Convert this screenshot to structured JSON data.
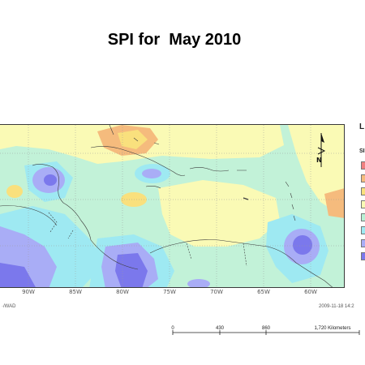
{
  "title": "SPI for  May 2010",
  "legend": {
    "title": "L",
    "subtitle": "SI",
    "classes": [
      {
        "color": "#f08080"
      },
      {
        "color": "#f5bb7d"
      },
      {
        "color": "#f9e07d"
      },
      {
        "color": "#fafab5"
      },
      {
        "color": "#b8f0d4"
      },
      {
        "color": "#9ee9f2"
      },
      {
        "color": "#a9adf6"
      },
      {
        "color": "#7b78ec"
      }
    ]
  },
  "map": {
    "longitude_labels": [
      "90W",
      "85W",
      "80W",
      "75W",
      "70W",
      "65W",
      "60W"
    ],
    "north_symbol": "N"
  },
  "scalebar": {
    "labels": [
      "0",
      "430",
      "860",
      "1,720 Kilometers"
    ]
  },
  "footer": {
    "left": "·/WAD",
    "right": "2009-11-18  14:2"
  },
  "colors": {
    "base": "#c2f2d8",
    "yellow_light": "#fafab5",
    "yellow": "#f9e07d",
    "orange": "#f5bb7d",
    "blue_light": "#9ee9f2",
    "blue_mid": "#a9adf6",
    "blue_dark": "#7b78ec"
  }
}
